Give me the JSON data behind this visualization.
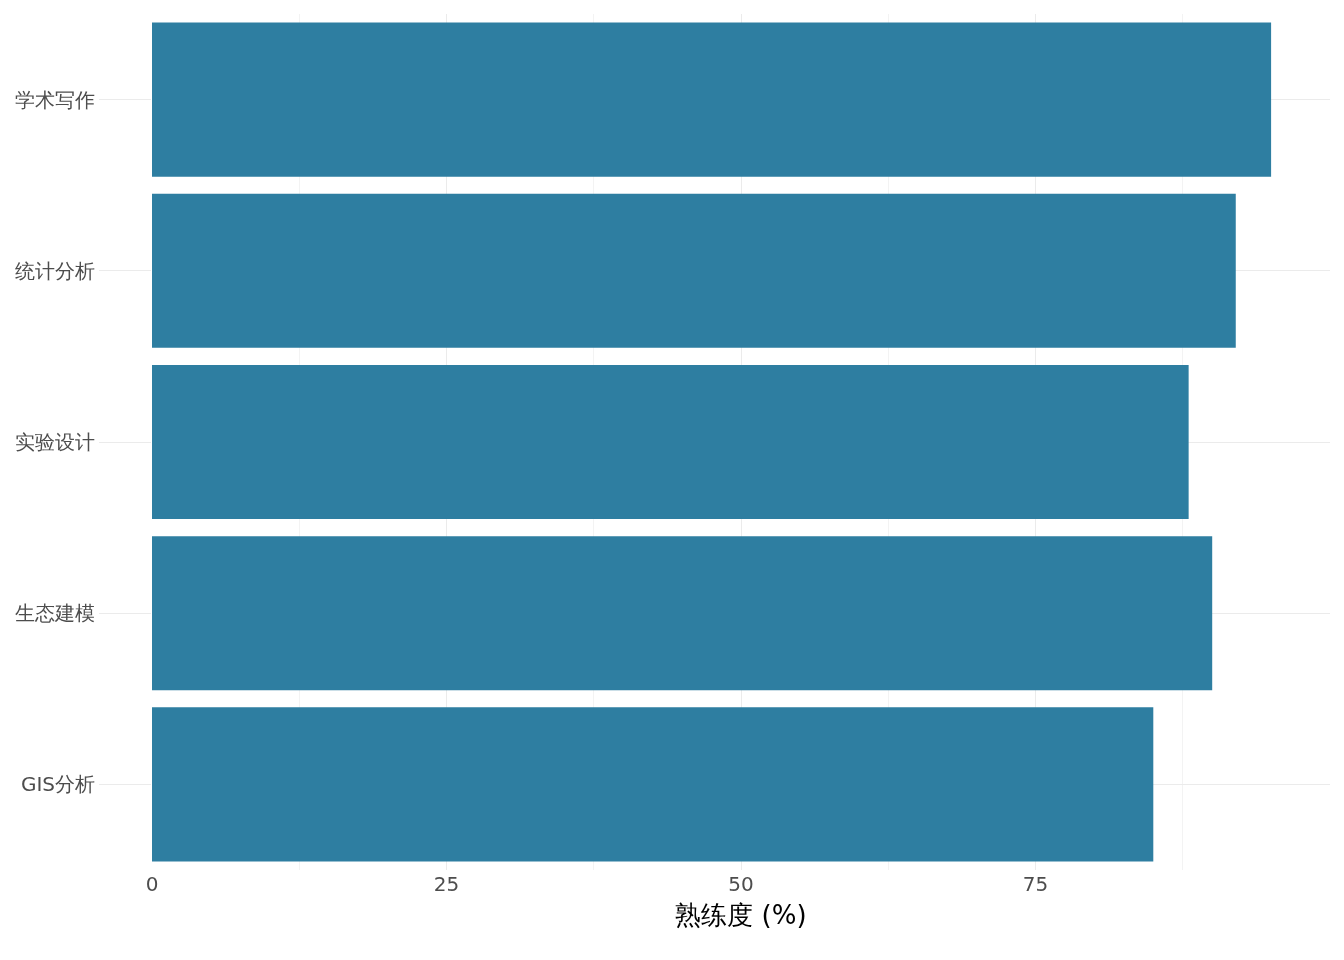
{
  "chart_data": {
    "type": "bar",
    "orientation": "horizontal",
    "xlabel": "熟练度 (%)",
    "categories": [
      "学术写作",
      "统计分析",
      "实验设计",
      "生态建模",
      "GIS分析"
    ],
    "values": [
      95,
      92,
      88,
      90,
      85
    ],
    "color": "#2e7ea1",
    "xlim": [
      0,
      100
    ],
    "xticks": [
      0,
      25,
      50,
      75
    ],
    "grid": true
  }
}
